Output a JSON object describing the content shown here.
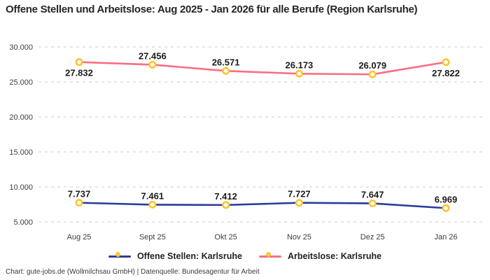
{
  "title": "Offene Stellen und Arbeitslose: Aug 2025 - Jan 2026 für alle Berufe (Region Karlsruhe)",
  "footer": "Chart: gute-jobs.de (Wollmilchsau GmbH) | Datenquelle: Bundesagentur für Arbeit",
  "chart_data": {
    "type": "line",
    "categories": [
      "Aug 25",
      "Sept 25",
      "Okt 25",
      "Nov 25",
      "Dez 25",
      "Jan 26"
    ],
    "series": [
      {
        "name": "Offene Stellen: Karlsruhe",
        "color": "#283c9e",
        "values": [
          7737,
          7461,
          7412,
          7727,
          7647,
          6969
        ],
        "value_labels": [
          "7.737",
          "7.461",
          "7.412",
          "7.727",
          "7.647",
          "6.969"
        ],
        "label_positions": [
          "above",
          "above",
          "above",
          "above",
          "above",
          "above"
        ]
      },
      {
        "name": "Arbeitslose: Karlsruhe",
        "color": "#f96e84",
        "values": [
          27832,
          27456,
          26571,
          26173,
          26079,
          27822
        ],
        "value_labels": [
          "27.832",
          "27.456",
          "26.571",
          "26.173",
          "26.079",
          "27.822"
        ],
        "label_positions": [
          "below",
          "above",
          "above",
          "above",
          "above",
          "below"
        ]
      }
    ],
    "y_ticks": [
      30000,
      25000,
      20000,
      15000,
      10000,
      5000
    ],
    "y_tick_labels": [
      "30.000",
      "25.000",
      "20.000",
      "15.000",
      "10.000",
      "5.000"
    ],
    "ylim": [
      5000,
      30000
    ],
    "grid": true,
    "grid_color": "#cccccc",
    "marker_color": "#fdc42c",
    "legend_position": "bottom",
    "xlabel": "",
    "ylabel": ""
  }
}
